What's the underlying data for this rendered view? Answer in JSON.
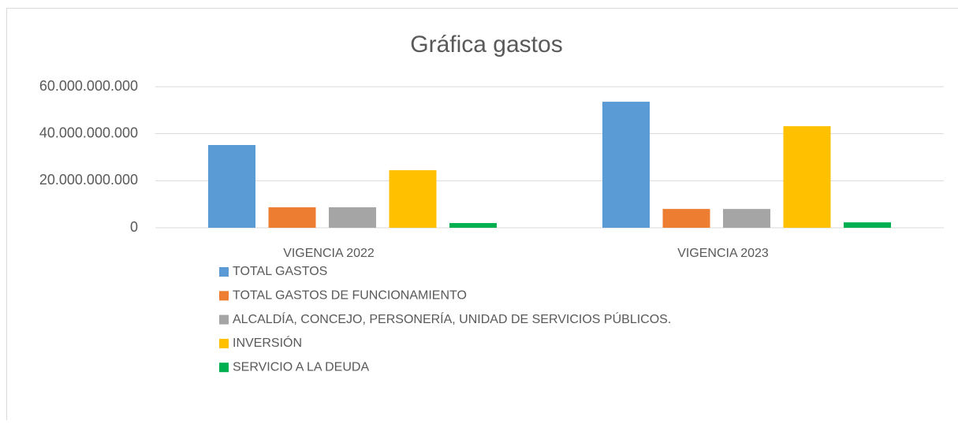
{
  "chart_data": {
    "type": "bar",
    "title": "Gráfica gastos",
    "categories": [
      "VIGENCIA 2022",
      "VIGENCIA 2023"
    ],
    "series": [
      {
        "name": "TOTAL GASTOS",
        "color": "#5b9bd5",
        "values": [
          35200000000,
          53600000000
        ]
      },
      {
        "name": "TOTAL GASTOS DE FUNCIONAMIENTO",
        "color": "#ed7d31",
        "values": [
          8700000000,
          8000000000
        ]
      },
      {
        "name": "ALCALDÍA, CONCEJO, PERSONERÍA, UNIDAD DE SERVICIOS PÚBLICOS.",
        "color": "#a5a5a5",
        "values": [
          8700000000,
          8000000000
        ]
      },
      {
        "name": "INVERSIÓN",
        "color": "#ffc000",
        "values": [
          24500000000,
          43200000000
        ]
      },
      {
        "name": "SERVICIO A LA DEUDA",
        "color": "#00b050",
        "values": [
          2000000000,
          2300000000
        ]
      }
    ],
    "ylim": [
      0,
      60000000000
    ],
    "yticks": [
      0,
      {
        "value": 20000000000,
        "label": "20.000.000.000"
      },
      {
        "value": 40000000000,
        "label": "40.000.000.000"
      },
      {
        "value": 60000000000,
        "label": "60.000.000.000"
      }
    ],
    "grid": true,
    "legend": "bottom"
  }
}
